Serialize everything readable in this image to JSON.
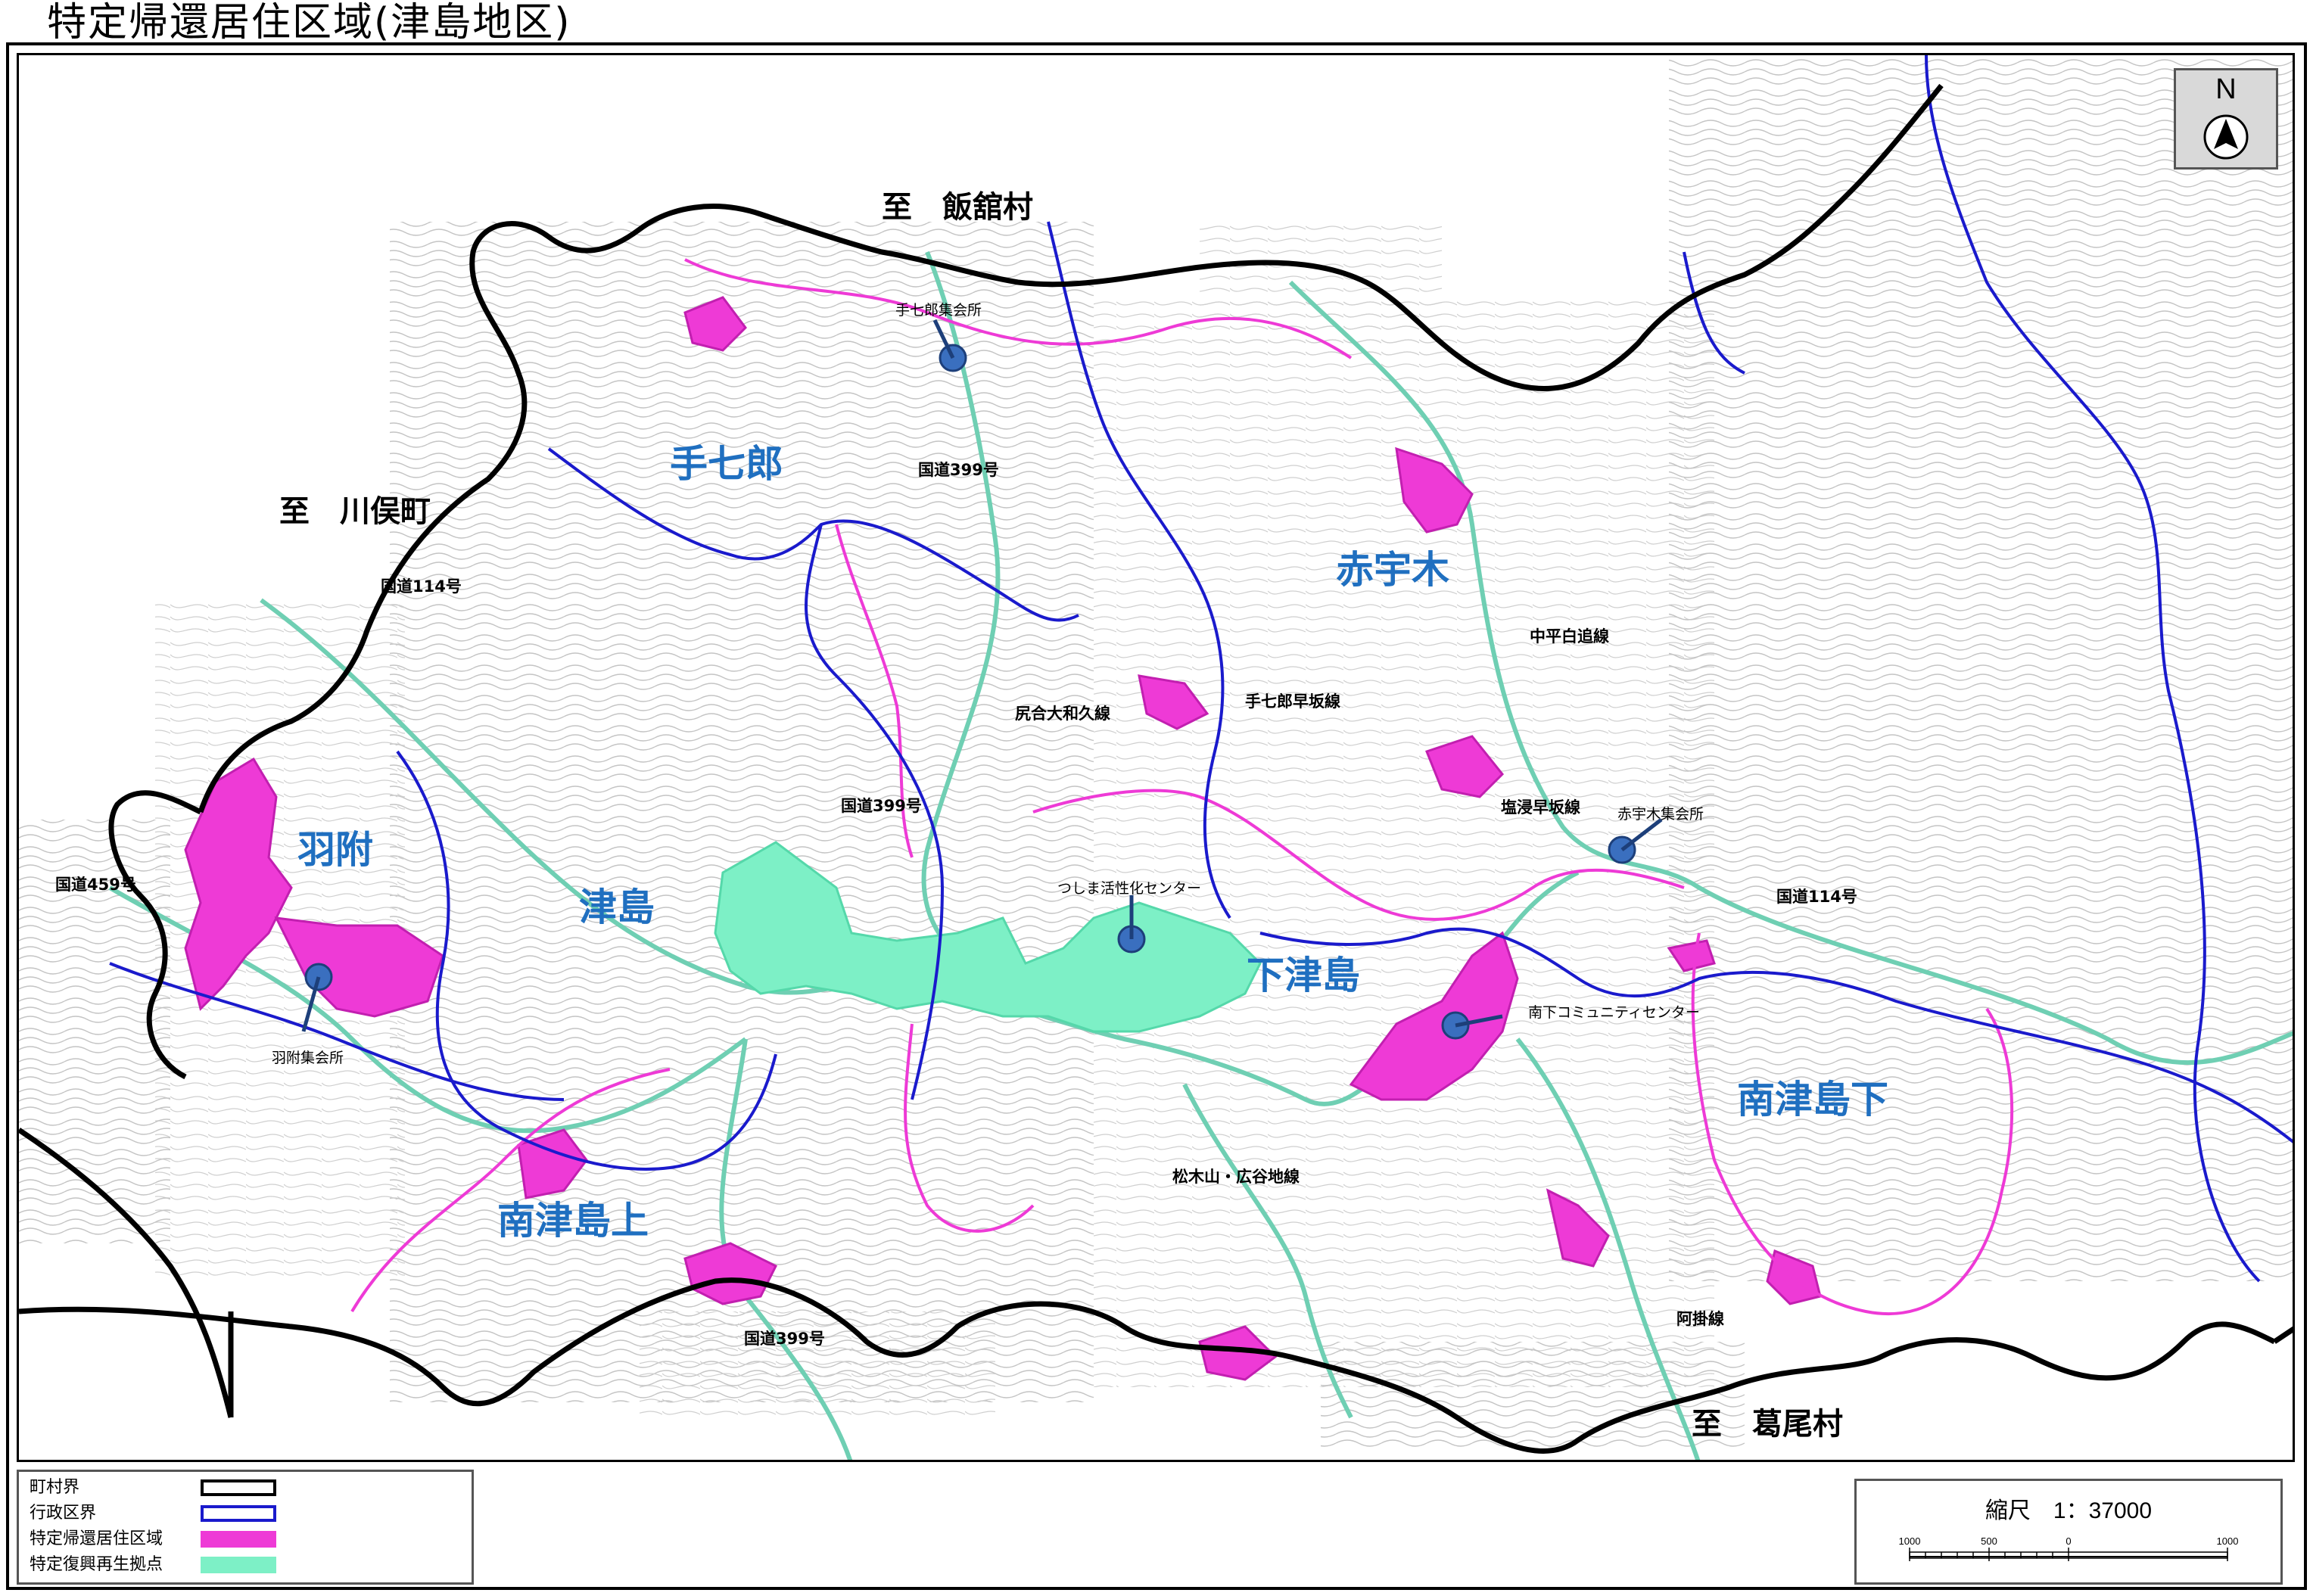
{
  "title": "特定帰還居住区域(津島地区)",
  "north_label": "N",
  "directions": {
    "iitate": "至　飯舘村",
    "kawamata": "至　川俣町",
    "katsurao": "至　葛尾村"
  },
  "places": {
    "teshichiro": "手七郎",
    "akauki": "赤宇木",
    "hatsuke": "羽附",
    "tsushima": "津島",
    "shimotsushima": "下津島",
    "minamitsushimakami": "南津島上",
    "minamitsushimashimo": "南津島下"
  },
  "roads": {
    "r399a": "国道399号",
    "r399b": "国道399号",
    "r399c": "国道399号",
    "r114a": "国道114号",
    "r114b": "国道114号",
    "r459": "国道459号",
    "nakadaira": "中平白追線",
    "teshichiro_hayasaka": "手七郎早坂線",
    "shiriai": "尻合大和久線",
    "shiobitashi": "塩浸早坂線",
    "matsukiyama": "松木山・広谷地線",
    "akake": "阿掛線"
  },
  "facilities": {
    "teshichiro_hall": "手七郎集会所",
    "akauki_hall": "赤宇木集会所",
    "hatsuke_hall": "羽附集会所",
    "tsushima_center": "つしま活性化センター",
    "minamishimo_center": "南下コミュニティセンター"
  },
  "legend": [
    {
      "label": "町村界",
      "color": "#000000",
      "style": "outline"
    },
    {
      "label": "行政区界",
      "color": "#1a1acc",
      "style": "outline"
    },
    {
      "label": "特定帰還居住区域",
      "color": "#ee3ad6",
      "style": "fill"
    },
    {
      "label": "特定復興再生拠点",
      "color": "#7df0c6",
      "style": "fill"
    }
  ],
  "scale": {
    "label": "縮尺　1：37000",
    "ticks": [
      "1000",
      "500",
      "0",
      "1000"
    ]
  },
  "colors": {
    "town_boundary": "#000000",
    "district_boundary": "#1a1acc",
    "return_zone": "#ee3ad6",
    "reconstruction_base": "#7df0c6",
    "road": "#6fcfb3",
    "contour": "#bdbdbd",
    "place_label": "#1f6fc0"
  }
}
